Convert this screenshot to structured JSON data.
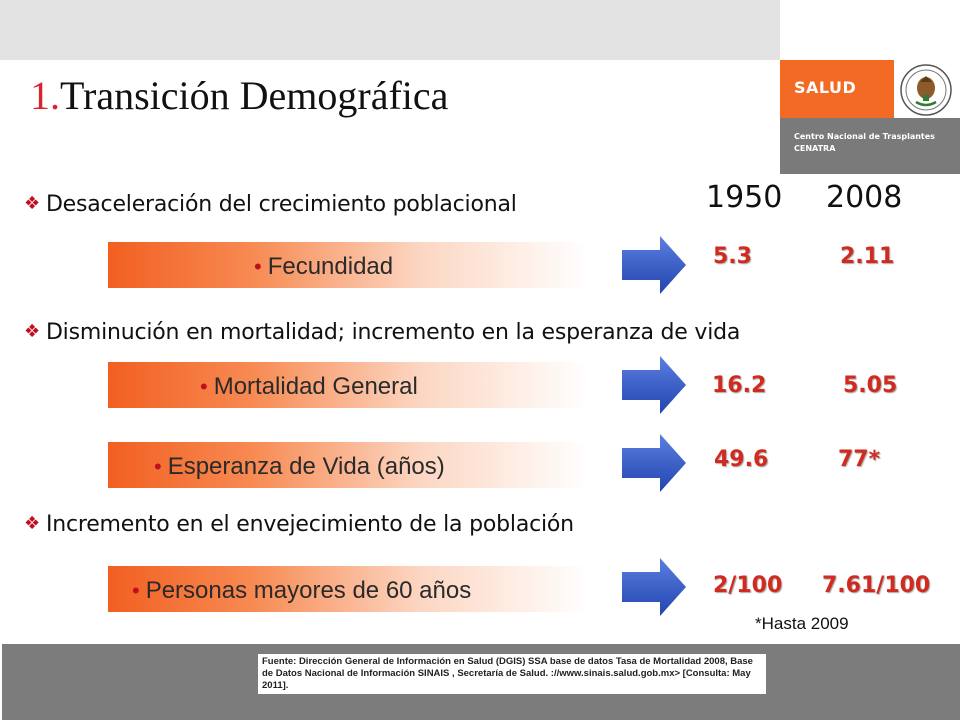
{
  "header": {
    "title_number": "1.",
    "title_text": "Transición Demográfica"
  },
  "brand": {
    "salud_label": "SALUD",
    "center_line1": "Centro Nacional de Trasplantes",
    "center_line2": "CENATRA",
    "seal_icon": "coat-of-arms-icon",
    "accent_color": "#f26a24"
  },
  "years": [
    "1950",
    "2008"
  ],
  "bullets": [
    "Desaceleración del crecimiento poblacional",
    "Disminución en mortalidad; incremento en la esperanza de vida",
    "Incremento en el envejecimiento de la población"
  ],
  "indicators": [
    {
      "label": "Fecundidad",
      "v1950": "5.3",
      "v2008": "2.11"
    },
    {
      "label": "Mortalidad General",
      "v1950": "16.2",
      "v2008": "5.05"
    },
    {
      "label": "Esperanza de Vida (años)",
      "v1950": "49.6",
      "v2008": "77*"
    },
    {
      "label": "Personas mayores de 60 años",
      "v1950": "2/100",
      "v2008": "7.61/100"
    }
  ],
  "footnote": "*Hasta 2009",
  "source": "Fuente: Dirección General de Información en Salud (DGIS) SSA base de datos Tasa de Mortalidad 2008, Base de Datos Nacional de Información SINAIS , Secretaría de Salud. ://www.sinais.salud.gob.mx> [Consulta: May 2011].",
  "colors": {
    "value_red": "#d12a1e",
    "arrow_blue": "#3a5fcd",
    "title_number_red": "#d9242d"
  }
}
